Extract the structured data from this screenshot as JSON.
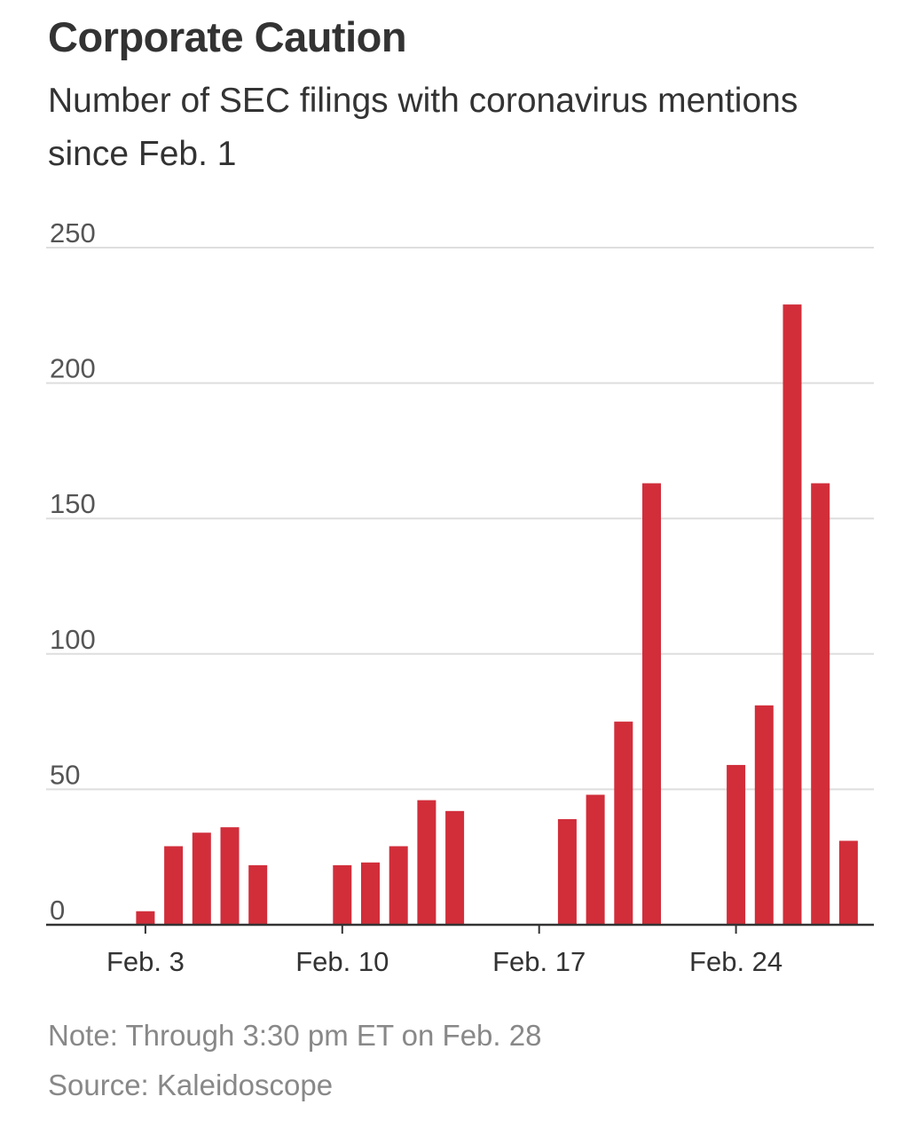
{
  "header": {
    "title": "Corporate Caution",
    "subtitle": "Number of SEC filings with coronavirus mentions since Feb. 1"
  },
  "footer": {
    "note": "Note: Through 3:30 pm ET on Feb. 28",
    "source": "Source: Kaleidoscope"
  },
  "colors": {
    "bar": "#d12e3a",
    "grid": "#dedede",
    "axis": "#333333"
  },
  "chart_data": {
    "type": "bar",
    "title": "Corporate Caution",
    "subtitle": "Number of SEC filings with coronavirus mentions since Feb. 1",
    "xlabel": "",
    "ylabel": "",
    "ylim": [
      0,
      250
    ],
    "yticks": [
      0,
      50,
      100,
      150,
      200,
      250
    ],
    "grid": true,
    "categories": [
      "Feb. 1",
      "Feb. 2",
      "Feb. 3",
      "Feb. 4",
      "Feb. 5",
      "Feb. 6",
      "Feb. 7",
      "Feb. 8",
      "Feb. 9",
      "Feb. 10",
      "Feb. 11",
      "Feb. 12",
      "Feb. 13",
      "Feb. 14",
      "Feb. 15",
      "Feb. 16",
      "Feb. 17",
      "Feb. 18",
      "Feb. 19",
      "Feb. 20",
      "Feb. 21",
      "Feb. 22",
      "Feb. 23",
      "Feb. 24",
      "Feb. 25",
      "Feb. 26",
      "Feb. 27",
      "Feb. 28"
    ],
    "values": [
      0,
      0,
      5,
      29,
      34,
      36,
      22,
      0,
      0,
      22,
      23,
      29,
      46,
      42,
      0,
      0,
      0,
      39,
      48,
      75,
      163,
      0,
      0,
      59,
      81,
      229,
      163,
      31
    ],
    "xtick_labels": [
      {
        "category": "Feb. 3",
        "label": "Feb. 3"
      },
      {
        "category": "Feb. 10",
        "label": "Feb. 10"
      },
      {
        "category": "Feb. 17",
        "label": "Feb. 17"
      },
      {
        "category": "Feb. 24",
        "label": "Feb. 24"
      }
    ]
  }
}
